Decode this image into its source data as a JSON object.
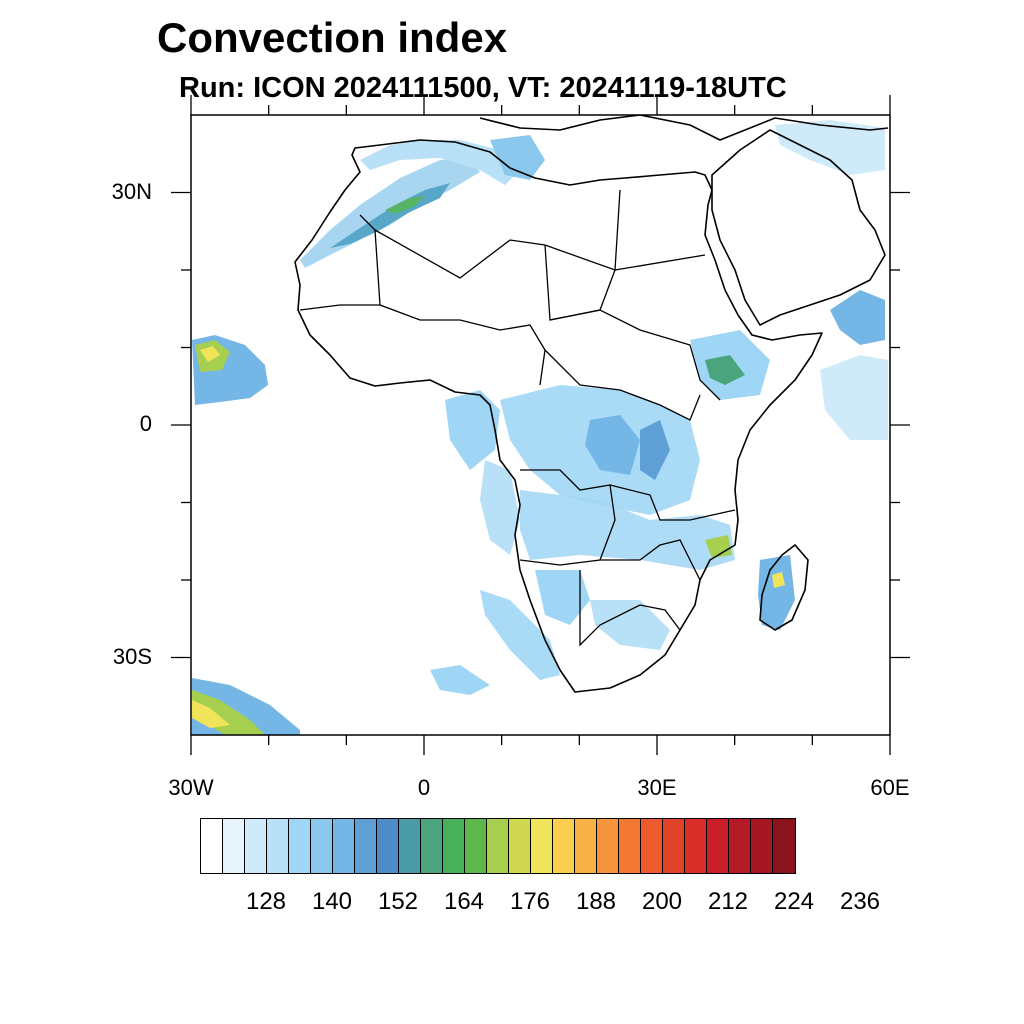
{
  "title": "Convection index",
  "subtitle": "Run: ICON 2024111500,  VT: 20241119-18UTC",
  "map": {
    "lon_range": [
      -30,
      60
    ],
    "lat_range": [
      -40,
      40
    ],
    "lon_ticks": [
      {
        "value": -30,
        "label": "30W"
      },
      {
        "value": 0,
        "label": "0"
      },
      {
        "value": 30,
        "label": "30E"
      },
      {
        "value": 60,
        "label": "60E"
      }
    ],
    "lat_ticks": [
      {
        "value": 30,
        "label": "30N"
      },
      {
        "value": 0,
        "label": "0"
      },
      {
        "value": -30,
        "label": "30S"
      }
    ]
  },
  "colorbar": {
    "colors": [
      "#ffffff",
      "#e8f4fc",
      "#cfeaf9",
      "#b8e1f7",
      "#a0d6f5",
      "#8ac8ee",
      "#74b6e6",
      "#5e9fd6",
      "#4d8cc6",
      "#4a9aa8",
      "#4aa57f",
      "#48b05a",
      "#5cb84b",
      "#a6cf4f",
      "#cfd850",
      "#f0e55a",
      "#fbcd51",
      "#f9b248",
      "#f7953d",
      "#f37834",
      "#ed5a2d",
      "#e04329",
      "#d92f28",
      "#c81f2a",
      "#b51a27",
      "#a31822",
      "#8b141c"
    ],
    "labels": [
      "128",
      "140",
      "152",
      "164",
      "176",
      "188",
      "200",
      "212",
      "224",
      "236"
    ]
  }
}
